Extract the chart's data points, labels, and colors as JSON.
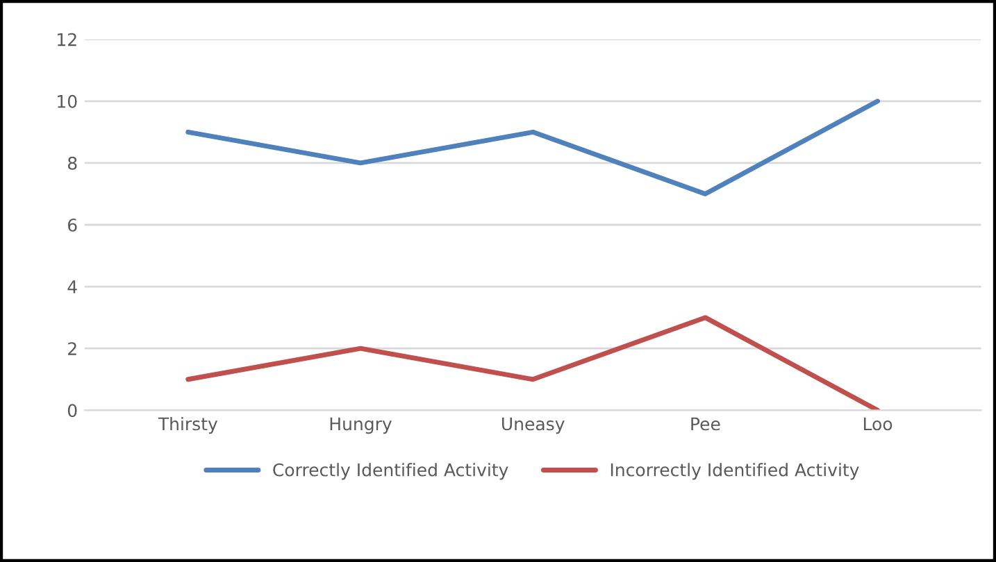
{
  "chart_data": {
    "type": "line",
    "categories": [
      "Thirsty",
      "Hungry",
      "Uneasy",
      "Pee",
      "Loo"
    ],
    "series": [
      {
        "name": "Correctly Identified Activity",
        "color": "#4f81bd",
        "values": [
          9,
          8,
          9,
          7,
          10
        ]
      },
      {
        "name": "Incorrectly Identified Activity",
        "color": "#c0504d",
        "values": [
          1,
          2,
          1,
          3,
          0
        ]
      }
    ],
    "ylim": [
      0,
      12
    ],
    "yticks": [
      0,
      2,
      4,
      6,
      8,
      10,
      12
    ],
    "grid": "y",
    "legend": "bottom",
    "marker": "none",
    "line_style": "solid"
  }
}
